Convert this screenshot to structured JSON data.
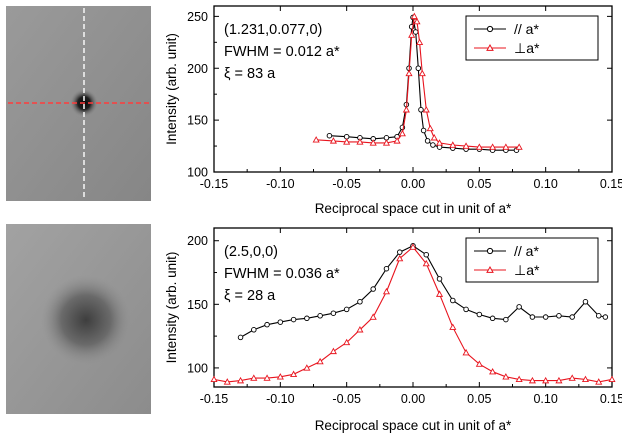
{
  "colors": {
    "parallel": "#000000",
    "perpendicular": "#e8141e",
    "cut_horizontal": "#ff3c3c",
    "cut_vertical": "#f0f0f0"
  },
  "images": [
    {
      "subject": "sharp diffraction spot with crossed cut lines"
    },
    {
      "subject": "broad diffuse diffraction spot"
    }
  ],
  "chart_data": [
    {
      "type": "line",
      "xlabel": "Reciprocal space cut in unit of a*",
      "ylabel": "Intensity (arb. unit)",
      "xlim": [
        -0.15,
        0.15
      ],
      "ylim": [
        100,
        260
      ],
      "xticks": [
        "-0.15",
        "-0.10",
        "-0.05",
        "0.00",
        "0.05",
        "0.10",
        "0.15"
      ],
      "xtick_values": [
        -0.15,
        -0.1,
        -0.05,
        0.0,
        0.05,
        0.1,
        0.15
      ],
      "yticks": [
        "100",
        "150",
        "200",
        "250"
      ],
      "ytick_values": [
        100,
        150,
        200,
        250
      ],
      "annotations": [
        "(1.231,0.077,0)",
        "FWHM = 0.012 a*",
        "ξ = 83 a"
      ],
      "legend": {
        "placement": "top-right"
      },
      "series": [
        {
          "name": "// a*",
          "marker": "circle",
          "x": [
            -0.063,
            -0.05,
            -0.04,
            -0.03,
            -0.02,
            -0.012,
            -0.008,
            -0.005,
            -0.003,
            -0.001,
            0.0,
            0.002,
            0.004,
            0.006,
            0.008,
            0.011,
            0.015,
            0.02,
            0.03,
            0.04,
            0.05,
            0.06,
            0.07,
            0.078
          ],
          "y": [
            135,
            134,
            133,
            132,
            133,
            134,
            143,
            165,
            200,
            240,
            249,
            235,
            200,
            160,
            140,
            130,
            126,
            124,
            123,
            122,
            122,
            121,
            121,
            121
          ]
        },
        {
          "name": "⊥a*",
          "marker": "triangle",
          "x": [
            -0.073,
            -0.06,
            -0.05,
            -0.04,
            -0.03,
            -0.02,
            -0.012,
            -0.008,
            -0.005,
            -0.003,
            -0.001,
            0.001,
            0.003,
            0.005,
            0.007,
            0.01,
            0.013,
            0.016,
            0.02,
            0.03,
            0.04,
            0.05,
            0.06,
            0.07,
            0.08
          ],
          "y": [
            131,
            130,
            129,
            129,
            128,
            128,
            130,
            137,
            160,
            195,
            232,
            250,
            245,
            225,
            195,
            160,
            142,
            133,
            128,
            126,
            125,
            124,
            124,
            124,
            124
          ]
        }
      ]
    },
    {
      "type": "line",
      "xlabel": "Reciprocal space cut in unit of a*",
      "ylabel": "Intensity (arb. unit)",
      "xlim": [
        -0.15,
        0.15
      ],
      "ylim": [
        85,
        210
      ],
      "xticks": [
        "-0.15",
        "-0.10",
        "-0.05",
        "0.00",
        "0.05",
        "0.10",
        "0.15"
      ],
      "xtick_values": [
        -0.15,
        -0.1,
        -0.05,
        0.0,
        0.05,
        0.1,
        0.15
      ],
      "yticks": [
        "100",
        "150",
        "200"
      ],
      "ytick_values": [
        100,
        150,
        200
      ],
      "annotations": [
        "(2.5,0,0)",
        "FWHM = 0.036 a*",
        "ξ = 28 a"
      ],
      "legend": {
        "placement": "top-right"
      },
      "series": [
        {
          "name": "// a*",
          "marker": "circle",
          "x": [
            -0.13,
            -0.12,
            -0.11,
            -0.1,
            -0.09,
            -0.08,
            -0.07,
            -0.06,
            -0.05,
            -0.04,
            -0.03,
            -0.02,
            -0.01,
            0.0,
            0.01,
            0.02,
            0.03,
            0.04,
            0.05,
            0.06,
            0.07,
            0.08,
            0.09,
            0.1,
            0.11,
            0.12,
            0.13,
            0.14,
            0.145
          ],
          "y": [
            124,
            130,
            134,
            136,
            138,
            139,
            141,
            143,
            146,
            152,
            162,
            178,
            191,
            196,
            189,
            170,
            153,
            146,
            142,
            139,
            138,
            148,
            140,
            140,
            141,
            140,
            152,
            141,
            140
          ]
        },
        {
          "name": "⊥a*",
          "marker": "triangle",
          "x": [
            -0.15,
            -0.14,
            -0.13,
            -0.12,
            -0.11,
            -0.1,
            -0.09,
            -0.08,
            -0.07,
            -0.06,
            -0.05,
            -0.04,
            -0.03,
            -0.02,
            -0.01,
            0.0,
            0.01,
            0.02,
            0.03,
            0.04,
            0.05,
            0.06,
            0.07,
            0.08,
            0.09,
            0.1,
            0.11,
            0.12,
            0.13,
            0.14,
            0.15
          ],
          "y": [
            91,
            89,
            90,
            92,
            92,
            93,
            95,
            100,
            105,
            113,
            120,
            130,
            140,
            160,
            186,
            195,
            182,
            158,
            132,
            112,
            103,
            97,
            93,
            91,
            90,
            90,
            90,
            92,
            91,
            89,
            91
          ]
        }
      ]
    }
  ]
}
